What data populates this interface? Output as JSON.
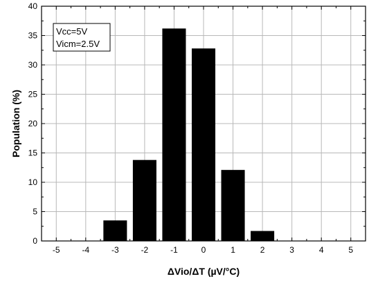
{
  "chart_data": {
    "type": "bar",
    "x": [
      -3,
      -2,
      -1,
      0,
      1,
      2
    ],
    "values": [
      3.5,
      13.8,
      36.2,
      32.8,
      12.1,
      1.7
    ],
    "xlim": [
      -5.5,
      5.5
    ],
    "ylim": [
      0,
      40
    ],
    "x_ticks": [
      "-5",
      "-4",
      "-3",
      "-2",
      "-1",
      "0",
      "1",
      "2",
      "3",
      "4",
      "5"
    ],
    "y_ticks": [
      "0",
      "5",
      "10",
      "15",
      "20",
      "25",
      "30",
      "35",
      "40"
    ],
    "xlabel": "ΔVio/ΔT (µV/°C)",
    "ylabel": "Population (%)",
    "annotation_lines": [
      "Vcc=5V",
      "Vicm=2.5V"
    ],
    "annotation_placement": "top-left",
    "grid": true,
    "bar_color": "#000000",
    "grid_color": "#b8b8b8"
  }
}
